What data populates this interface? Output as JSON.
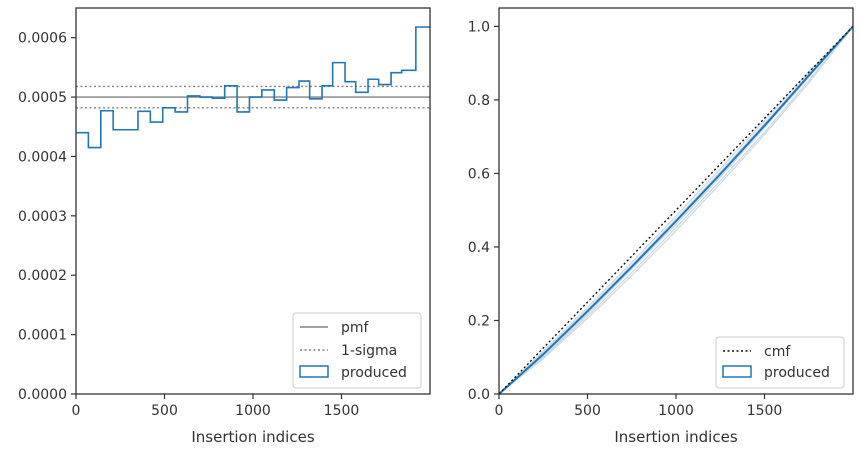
{
  "chart_data": [
    {
      "type": "step",
      "xlabel": "Insertion indices",
      "ylabel": "",
      "xlim": [
        0,
        2000
      ],
      "ylim": [
        0,
        0.00065
      ],
      "x_ticks": [
        0,
        500,
        1000,
        1500
      ],
      "x_tick_labels": [
        "0",
        "500",
        "1000",
        "1500"
      ],
      "y_ticks": [
        0,
        0.0001,
        0.0002,
        0.0003,
        0.0004,
        0.0005,
        0.0006
      ],
      "y_tick_labels": [
        "0.0000",
        "0.0001",
        "0.0002",
        "0.0003",
        "0.0004",
        "0.0005",
        "0.0006"
      ],
      "grid": false,
      "legend_position": "lower-right",
      "pmf": 0.0005,
      "sigma_band": [
        0.000482,
        0.000518
      ],
      "bin_edges": [
        0,
        70,
        140,
        210,
        350,
        420,
        490,
        560,
        630,
        700,
        770,
        840,
        910,
        980,
        1050,
        1120,
        1190,
        1260,
        1320,
        1390,
        1450,
        1520,
        1580,
        1650,
        1710,
        1780,
        1840,
        1920,
        2000
      ],
      "produced": [
        0.00044,
        0.000415,
        0.000477,
        0.000445,
        0.000476,
        0.000458,
        0.000482,
        0.000475,
        0.000502,
        0.0005,
        0.000498,
        0.000519,
        0.000475,
        0.0005,
        0.000512,
        0.000495,
        0.000516,
        0.000527,
        0.000497,
        0.000519,
        0.000558,
        0.000526,
        0.000508,
        0.00053,
        0.000521,
        0.000541,
        0.000545,
        0.000618
      ],
      "legend": [
        {
          "label": "pmf",
          "style": "solid",
          "color": "#808080"
        },
        {
          "label": "1-sigma",
          "style": "dotted",
          "color": "#808080"
        },
        {
          "label": "produced",
          "style": "box",
          "color": "#1f77b4"
        }
      ]
    },
    {
      "type": "line",
      "xlabel": "Insertion indices",
      "ylabel": "",
      "xlim": [
        0,
        2000
      ],
      "ylim": [
        0,
        1.05
      ],
      "x_ticks": [
        0,
        500,
        1000,
        1500
      ],
      "x_tick_labels": [
        "0",
        "500",
        "1000",
        "1500"
      ],
      "y_ticks": [
        0,
        0.2,
        0.4,
        0.6,
        0.8,
        1.0
      ],
      "y_tick_labels": [
        "0.0",
        "0.2",
        "0.4",
        "0.6",
        "0.8",
        "1.0"
      ],
      "grid": false,
      "legend_position": "lower-right",
      "cmf": {
        "x": [
          0,
          2000
        ],
        "y": [
          0,
          1
        ]
      },
      "produced": {
        "x": [
          0,
          250,
          500,
          750,
          1000,
          1250,
          1500,
          1750,
          2000
        ],
        "y": [
          0,
          0.108,
          0.225,
          0.346,
          0.47,
          0.598,
          0.73,
          0.866,
          1.0
        ]
      },
      "faint_lines": [
        {
          "x": [
            0,
            250,
            500,
            750,
            1000,
            1250,
            1500,
            1750,
            2000
          ],
          "y": [
            0,
            0.1,
            0.212,
            0.33,
            0.452,
            0.58,
            0.712,
            0.852,
            1.0
          ]
        },
        {
          "x": [
            0,
            250,
            500,
            750,
            1000,
            1250,
            1500,
            1750,
            2000
          ],
          "y": [
            0,
            0.116,
            0.236,
            0.358,
            0.484,
            0.612,
            0.744,
            0.876,
            1.0
          ]
        },
        {
          "x": [
            0,
            250,
            500,
            750,
            1000,
            1250,
            1500,
            1750,
            2000
          ],
          "y": [
            0,
            0.104,
            0.218,
            0.34,
            0.462,
            0.59,
            0.724,
            0.862,
            1.0
          ]
        },
        {
          "x": [
            0,
            250,
            500,
            750,
            1000,
            1250,
            1500,
            1750,
            2000
          ],
          "y": [
            0,
            0.112,
            0.23,
            0.351,
            0.476,
            0.604,
            0.736,
            0.87,
            1.0
          ]
        },
        {
          "x": [
            0,
            250,
            500,
            750,
            1000,
            1250,
            1500,
            1750,
            2000
          ],
          "y": [
            0,
            0.096,
            0.206,
            0.322,
            0.444,
            0.572,
            0.706,
            0.846,
            1.0
          ]
        }
      ],
      "legend": [
        {
          "label": "cmf",
          "style": "dotted",
          "color": "#111111"
        },
        {
          "label": "produced",
          "style": "box",
          "color": "#1f77b4"
        }
      ]
    }
  ]
}
